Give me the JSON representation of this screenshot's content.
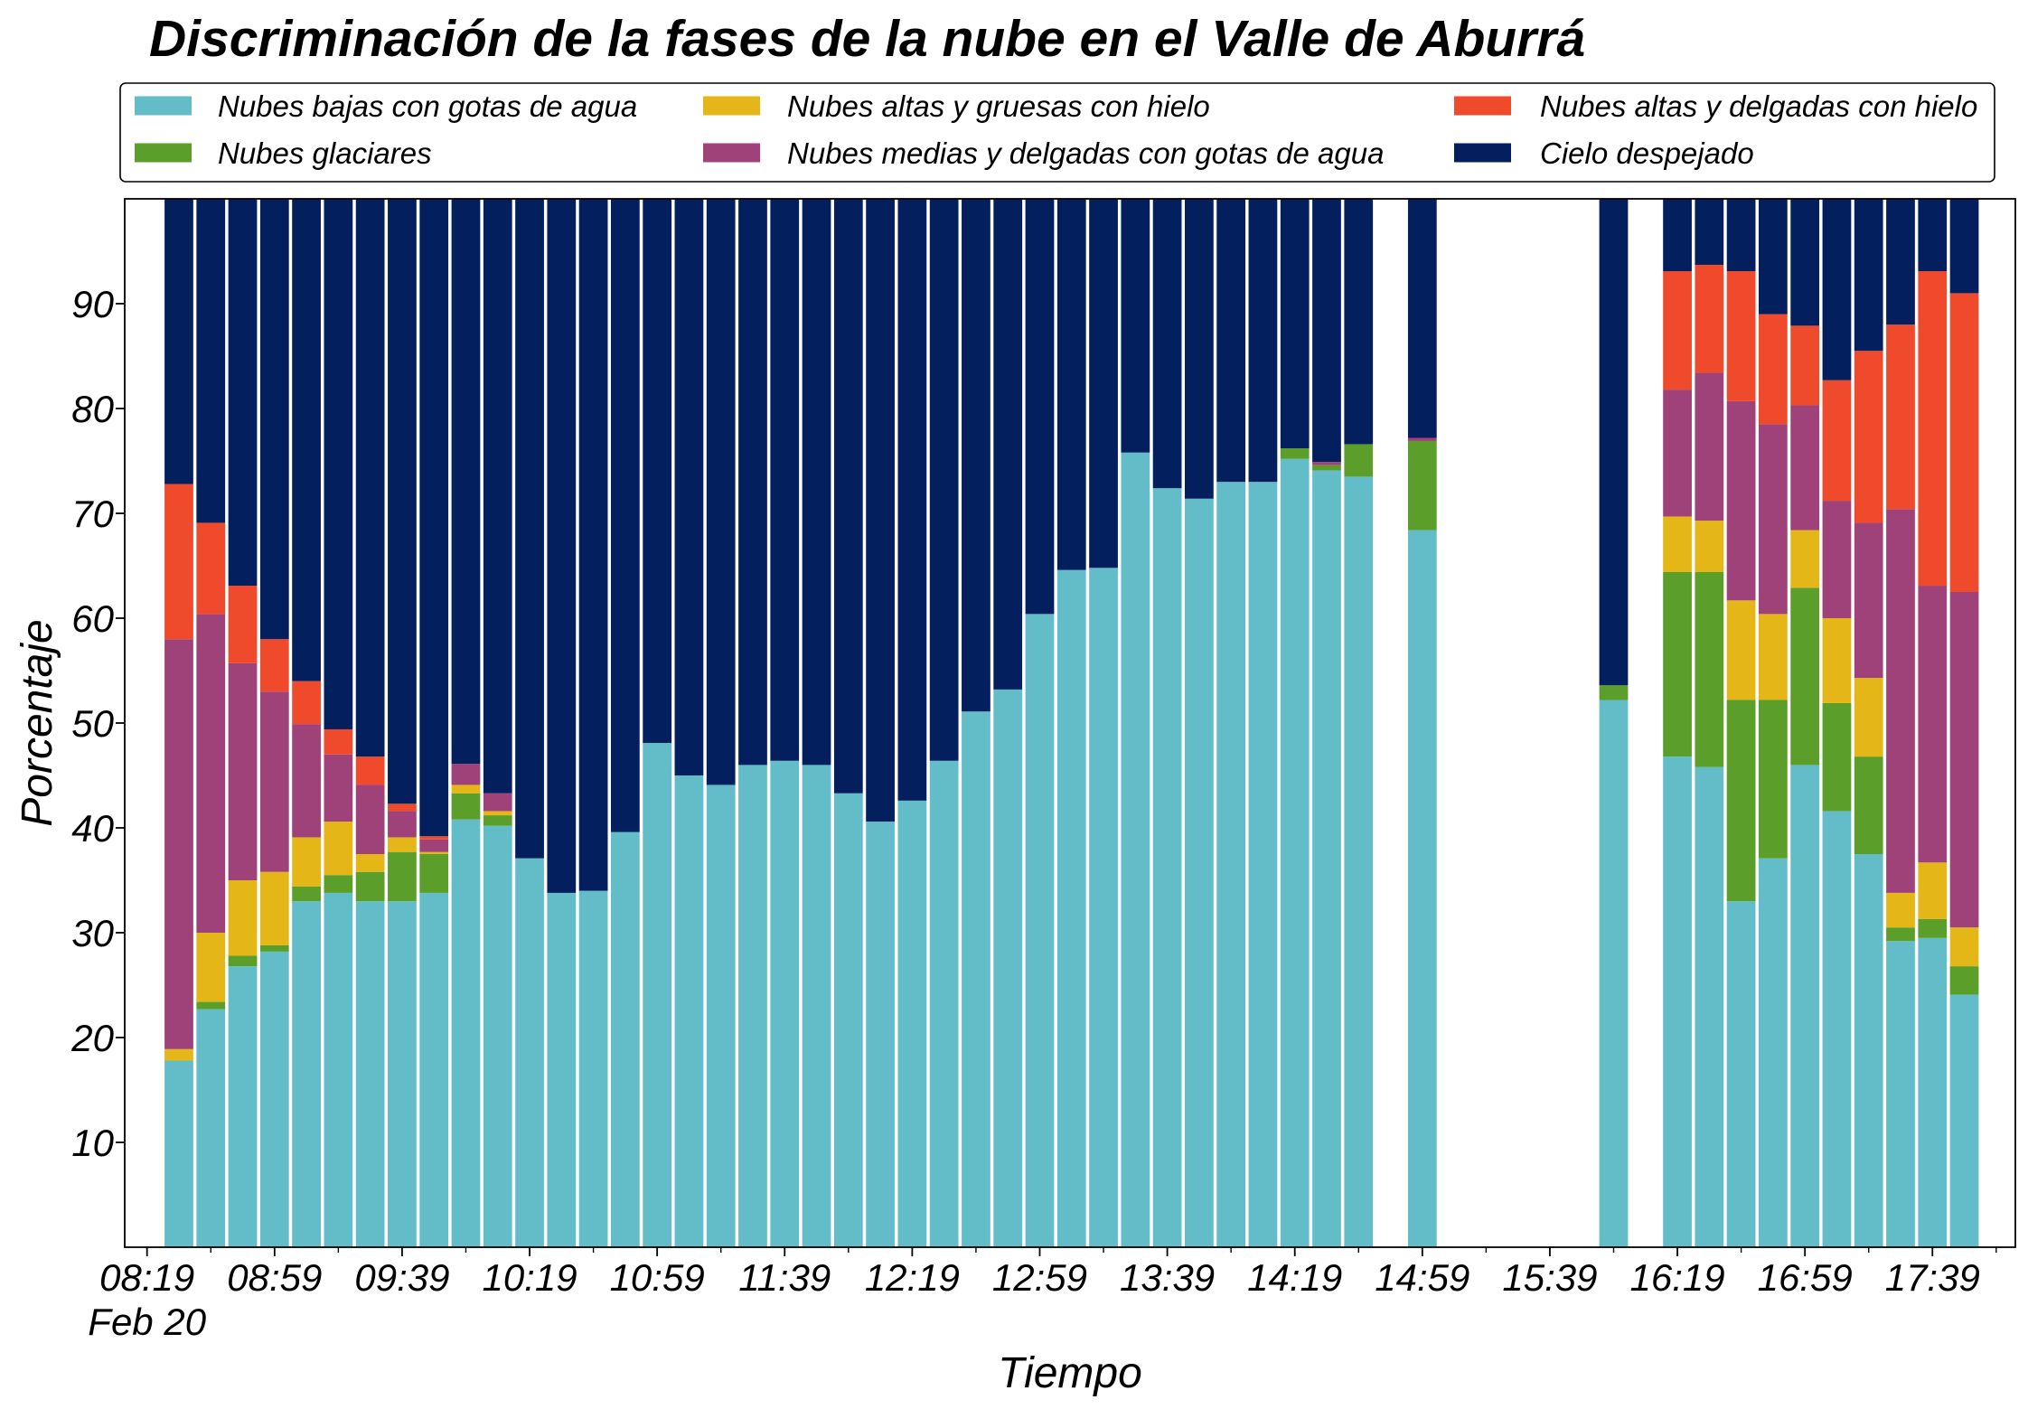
{
  "chart_data": {
    "type": "bar",
    "stacked": true,
    "title": "Discriminación de la fases de la nube en el Valle de Aburrá",
    "xlabel": "Tiempo",
    "ylabel": "Porcentaje",
    "x_date_label": "Feb 20",
    "ylim": [
      0,
      100
    ],
    "yticks": [
      10,
      20,
      30,
      40,
      50,
      60,
      70,
      80,
      90
    ],
    "xlim": [
      "08:12",
      "18:05"
    ],
    "xticks": [
      "08:19",
      "08:59",
      "09:39",
      "10:19",
      "10:59",
      "11:39",
      "12:19",
      "12:59",
      "13:39",
      "14:19",
      "14:59",
      "15:39",
      "16:19",
      "16:59",
      "17:39"
    ],
    "grid": false,
    "legend": {
      "placement": "top, above plot",
      "columns": 3
    },
    "x": [
      "08:29",
      "08:39",
      "08:49",
      "08:59",
      "09:09",
      "09:19",
      "09:29",
      "09:39",
      "09:49",
      "09:59",
      "10:09",
      "10:19",
      "10:29",
      "10:39",
      "10:49",
      "10:59",
      "11:09",
      "11:19",
      "11:29",
      "11:39",
      "11:49",
      "11:59",
      "12:09",
      "12:19",
      "12:29",
      "12:39",
      "12:49",
      "12:59",
      "13:09",
      "13:19",
      "13:29",
      "13:39",
      "13:49",
      "13:59",
      "14:09",
      "14:19",
      "14:29",
      "14:39",
      "14:59",
      "15:59",
      "16:19",
      "16:29",
      "16:39",
      "16:49",
      "16:59",
      "17:09",
      "17:19",
      "17:29",
      "17:39",
      "17:49"
    ],
    "series": [
      {
        "name": "Nubes bajas con gotas de agua",
        "color": "#63BDC9",
        "values": [
          17.8,
          22.7,
          26.8,
          28.2,
          33.0,
          33.8,
          33.0,
          33.0,
          33.8,
          40.8,
          40.2,
          37.1,
          33.8,
          34.0,
          39.6,
          48.1,
          45.0,
          44.1,
          46.0,
          46.4,
          46.0,
          43.3,
          40.6,
          42.6,
          46.4,
          51.1,
          53.2,
          60.4,
          64.6,
          64.8,
          75.8,
          72.4,
          71.4,
          73.0,
          73.0,
          75.2,
          74.1,
          73.5,
          68.4,
          52.2,
          46.8,
          45.8,
          33.0,
          37.1,
          46.0,
          41.6,
          37.5,
          29.2,
          29.5,
          24.1
        ]
      },
      {
        "name": "Nubes glaciares",
        "color": "#5B9E2A",
        "values": [
          0,
          0.7,
          1.0,
          0.6,
          1.4,
          1.7,
          2.8,
          4.7,
          3.7,
          2.5,
          1.0,
          0,
          0,
          0,
          0,
          0,
          0,
          0,
          0,
          0,
          0,
          0,
          0,
          0,
          0,
          0,
          0,
          0,
          0,
          0,
          0,
          0,
          0,
          0,
          0,
          1.0,
          0.5,
          3.1,
          8.5,
          1.4,
          17.6,
          18.6,
          19.2,
          15.1,
          16.9,
          10.3,
          9.3,
          1.3,
          1.8,
          2.7
        ]
      },
      {
        "name": "Nubes altas y gruesas con hielo",
        "color": "#E4B617",
        "values": [
          1.1,
          6.6,
          7.2,
          7.0,
          4.7,
          5.1,
          1.7,
          1.4,
          0.2,
          0.8,
          0.4,
          0,
          0,
          0,
          0,
          0,
          0,
          0,
          0,
          0,
          0,
          0,
          0,
          0,
          0,
          0,
          0,
          0,
          0,
          0,
          0,
          0,
          0,
          0,
          0,
          0,
          0,
          0,
          0,
          0,
          5.3,
          4.9,
          9.5,
          8.2,
          5.5,
          8.1,
          7.5,
          3.3,
          5.4,
          3.7
        ]
      },
      {
        "name": "Nubes medias y delgadas con gotas de agua",
        "color": "#A0427A",
        "values": [
          39.1,
          30.4,
          20.7,
          17.2,
          10.8,
          6.4,
          6.6,
          2.5,
          1.2,
          2.0,
          1.7,
          0,
          0,
          0,
          0,
          0,
          0,
          0,
          0,
          0,
          0,
          0,
          0,
          0,
          0,
          0,
          0,
          0,
          0,
          0,
          0,
          0,
          0,
          0,
          0,
          0,
          0.3,
          0,
          0.3,
          0,
          12.1,
          14.1,
          19.0,
          18.1,
          11.9,
          11.2,
          14.8,
          36.6,
          26.4,
          32.0
        ]
      },
      {
        "name": "Nubes altas y delgadas con hielo",
        "color": "#EE4A2B",
        "values": [
          14.8,
          8.7,
          7.4,
          5.0,
          4.1,
          2.4,
          2.7,
          0.7,
          0.3,
          0,
          0,
          0,
          0,
          0,
          0,
          0,
          0,
          0,
          0,
          0,
          0,
          0,
          0,
          0,
          0,
          0,
          0,
          0,
          0,
          0,
          0,
          0,
          0,
          0,
          0,
          0,
          0,
          0,
          0,
          0,
          11.3,
          10.3,
          12.4,
          10.5,
          7.6,
          11.5,
          16.4,
          17.6,
          30.0,
          28.5
        ]
      },
      {
        "name": "Cielo despejado",
        "color": "#031F5D",
        "values": [
          27.2,
          30.9,
          36.9,
          42.0,
          46.0,
          50.6,
          53.2,
          57.7,
          60.8,
          53.9,
          56.7,
          62.9,
          66.2,
          66.0,
          60.4,
          51.9,
          55.0,
          55.9,
          54.0,
          53.6,
          54.0,
          56.7,
          59.4,
          57.4,
          53.6,
          48.9,
          46.8,
          39.6,
          35.4,
          35.2,
          24.2,
          27.6,
          28.6,
          27.0,
          27.0,
          23.8,
          25.1,
          23.4,
          22.8,
          46.4,
          6.9,
          6.3,
          6.9,
          11.0,
          12.1,
          17.3,
          14.5,
          12.0,
          6.9,
          9.0
        ]
      }
    ]
  }
}
